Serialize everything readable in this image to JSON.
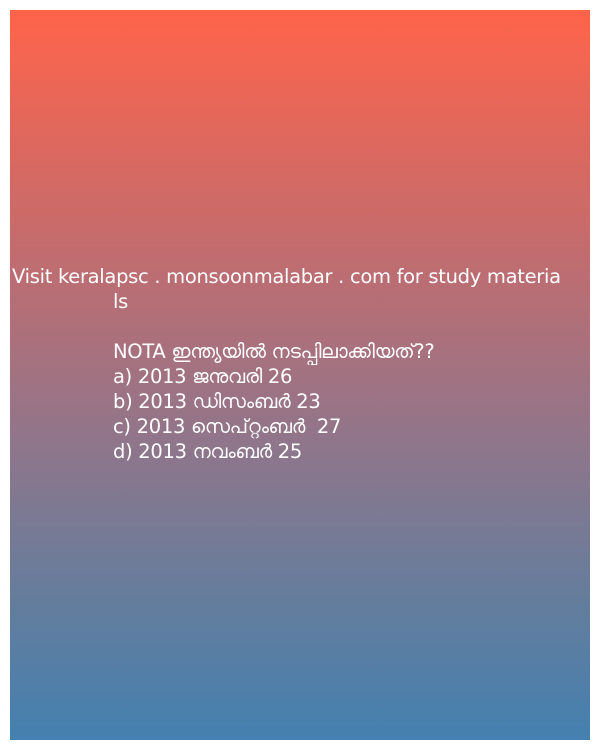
{
  "banner": {
    "visit_line1": "Visit keralapsc . monsoonmalabar . com for study materia",
    "visit_line2": "ls"
  },
  "question": {
    "text": "NOTA ഇന്ത്യയിൽ നടപ്പിലാക്കിയത്??",
    "options": [
      "a) 2013 ജനുവരി 26",
      "b) 2013 ഡിസംബർ 23",
      "c) 2013 സെപ്റ്റംബർ  27",
      "d) 2013 നവംബർ 25"
    ]
  },
  "colors": {
    "gradient_top": "#ff644a",
    "gradient_bottom": "#4480b0",
    "text": "#ffffff"
  }
}
